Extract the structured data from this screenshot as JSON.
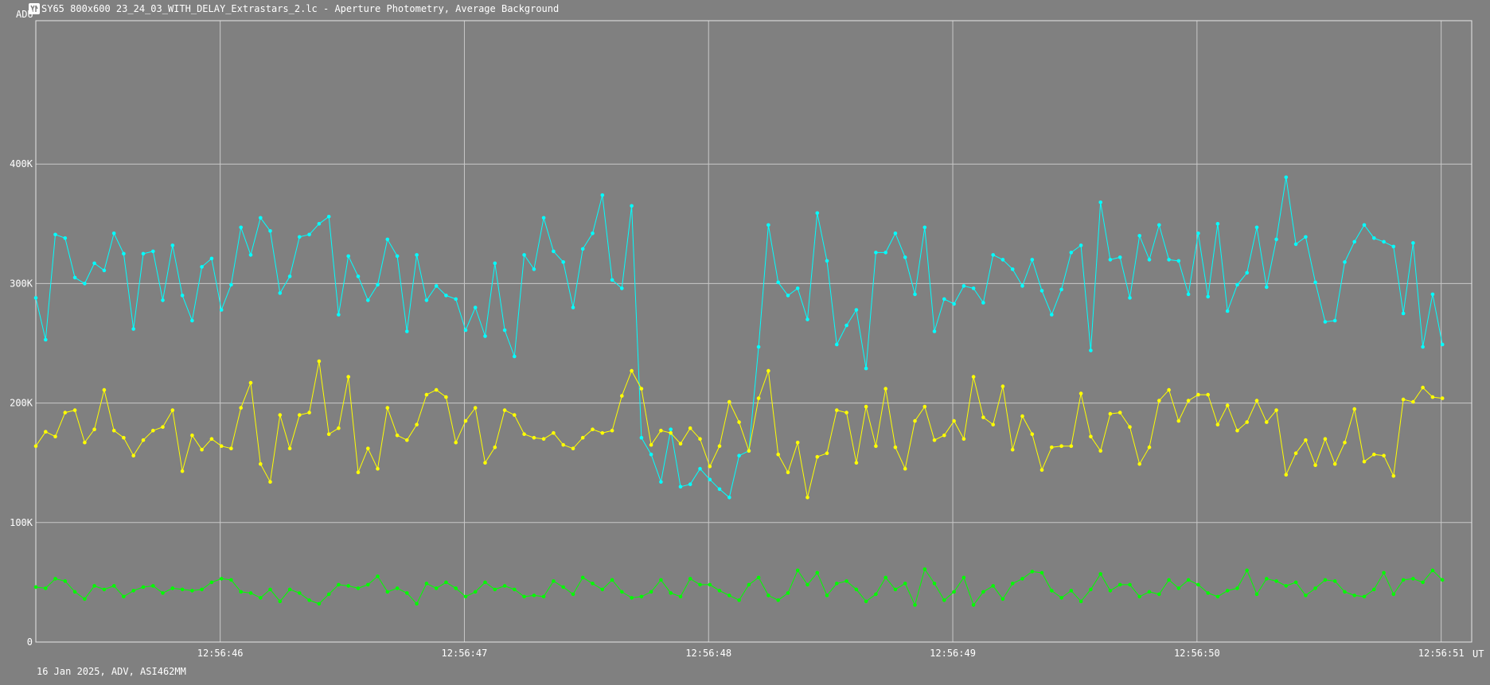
{
  "window": {
    "title": "SY65 800x600 23_24_03_WITH_DELAY_Extrastars_2.lc - Aperture Photometry, Average Background",
    "icon": "app-logo-icon"
  },
  "footer": "16 Jan 2025, ADV, ASI462MM",
  "colors": {
    "background": "#808080",
    "grid": "#c8c8c8",
    "axis": "#e6e6e6",
    "text": "#ffffff",
    "cyan": "#00ffff",
    "yellow": "#ffff00",
    "green": "#00ff00"
  },
  "chart_data": {
    "type": "line",
    "ylabel": "ADU",
    "xunit": "UT",
    "ylim": [
      0,
      520000
    ],
    "y_ticks": [
      {
        "value": 0,
        "label": "0"
      },
      {
        "value": 100000,
        "label": "100K"
      },
      {
        "value": 200000,
        "label": "200K"
      },
      {
        "value": 300000,
        "label": "300K"
      },
      {
        "value": 400000,
        "label": "400K"
      }
    ],
    "xlim": [
      45.245,
      51.125
    ],
    "x_ticks": [
      {
        "value": 46,
        "label": "12:56:46"
      },
      {
        "value": 47,
        "label": "12:56:47"
      },
      {
        "value": 48,
        "label": "12:56:48"
      },
      {
        "value": 49,
        "label": "12:56:49"
      },
      {
        "value": 50,
        "label": "12:56:50"
      },
      {
        "value": 51,
        "label": "12:56:51"
      }
    ],
    "grid": true,
    "x_start": 45.245,
    "x_step": 0.04,
    "series": [
      {
        "color": "#00ffff",
        "values": [
          288000,
          253000,
          341000,
          338000,
          305000,
          300000,
          317000,
          311000,
          342000,
          325000,
          262000,
          325000,
          327000,
          286000,
          332000,
          290000,
          269000,
          314000,
          321000,
          278000,
          299000,
          347000,
          324000,
          355000,
          344000,
          292000,
          306000,
          339000,
          341000,
          350000,
          356000,
          274000,
          323000,
          306000,
          286000,
          299000,
          337000,
          323000,
          260000,
          324000,
          286000,
          298000,
          290000,
          287000,
          261000,
          280000,
          256000,
          317000,
          261000,
          239000,
          324000,
          312000,
          355000,
          327000,
          318000,
          280000,
          329000,
          342000,
          374000,
          303000,
          296000,
          365000,
          171000,
          157000,
          134000,
          178000,
          130000,
          132000,
          145000,
          136000,
          128000,
          121000,
          156000,
          160000,
          247000,
          349000,
          301000,
          290000,
          296000,
          270000,
          359000,
          319000,
          249000,
          265000,
          278000,
          229000,
          326000,
          326000,
          342000,
          322000,
          291000,
          347000,
          260000,
          287000,
          283000,
          298000,
          296000,
          284000,
          324000,
          320000,
          312000,
          298000,
          320000,
          294000,
          274000,
          295000,
          326000,
          332000,
          244000,
          368000,
          320000,
          322000,
          288000,
          340000,
          320000,
          349000,
          320000,
          319000,
          291000,
          342000,
          289000,
          350000,
          277000,
          299000,
          309000,
          347000,
          297000,
          337000,
          389000,
          333000,
          339000,
          301000,
          268000,
          269000,
          318000,
          335000,
          349000,
          338000,
          335000,
          331000,
          275000,
          334000,
          247000,
          291000,
          249000
        ]
      },
      {
        "color": "#ffff00",
        "values": [
          164000,
          176000,
          172000,
          192000,
          194000,
          167000,
          178000,
          211000,
          177000,
          171000,
          156000,
          169000,
          177000,
          180000,
          194000,
          143000,
          173000,
          161000,
          170000,
          164000,
          162000,
          196000,
          217000,
          149000,
          134000,
          190000,
          162000,
          190000,
          192000,
          235000,
          174000,
          179000,
          222000,
          142000,
          162000,
          145000,
          196000,
          173000,
          169000,
          182000,
          207000,
          211000,
          205000,
          167000,
          185000,
          196000,
          150000,
          163000,
          194000,
          190000,
          174000,
          171000,
          170000,
          175000,
          165000,
          162000,
          171000,
          178000,
          175000,
          177000,
          206000,
          227000,
          212000,
          165000,
          177000,
          175000,
          166000,
          179000,
          170000,
          147000,
          164000,
          201000,
          184000,
          160000,
          204000,
          227000,
          157000,
          142000,
          167000,
          121000,
          155000,
          158000,
          194000,
          192000,
          150000,
          197000,
          164000,
          212000,
          163000,
          145000,
          185000,
          197000,
          169000,
          173000,
          185000,
          170000,
          222000,
          188000,
          182000,
          214000,
          161000,
          189000,
          174000,
          144000,
          163000,
          164000,
          164000,
          208000,
          172000,
          160000,
          191000,
          192000,
          180000,
          149000,
          163000,
          202000,
          211000,
          185000,
          202000,
          207000,
          207000,
          182000,
          198000,
          177000,
          184000,
          202000,
          184000,
          194000,
          140000,
          158000,
          169000,
          148000,
          170000,
          149000,
          167000,
          195000,
          151000,
          157000,
          156000,
          139000,
          203000,
          201000,
          213000,
          205000,
          204000
        ]
      },
      {
        "color": "#00ff00",
        "values": [
          46000,
          45000,
          53000,
          51000,
          42000,
          36000,
          47000,
          44000,
          47000,
          38000,
          43000,
          46000,
          47000,
          41000,
          45000,
          44000,
          43000,
          44000,
          50000,
          53000,
          52000,
          42000,
          41000,
          37000,
          44000,
          34000,
          44000,
          41000,
          35000,
          32000,
          40000,
          48000,
          47000,
          45000,
          48000,
          55000,
          42000,
          45000,
          41000,
          32000,
          49000,
          45000,
          50000,
          45000,
          38000,
          42000,
          50000,
          44000,
          47000,
          44000,
          38000,
          39000,
          38000,
          51000,
          46000,
          40000,
          54000,
          49000,
          44000,
          52000,
          42000,
          37000,
          38000,
          42000,
          52000,
          41000,
          38000,
          53000,
          48000,
          48000,
          43000,
          39000,
          35000,
          48000,
          54000,
          39000,
          35000,
          41000,
          60000,
          48000,
          58000,
          39000,
          49000,
          51000,
          44000,
          34000,
          40000,
          54000,
          44000,
          49000,
          31000,
          61000,
          49000,
          35000,
          42000,
          54000,
          31000,
          42000,
          47000,
          36000,
          49000,
          53000,
          59000,
          58000,
          43000,
          37000,
          43000,
          34000,
          44000,
          57000,
          43000,
          48000,
          48000,
          38000,
          42000,
          40000,
          52000,
          45000,
          52000,
          48000,
          41000,
          38000,
          43000,
          45000,
          60000,
          40000,
          53000,
          51000,
          47000,
          50000,
          39000,
          45000,
          52000,
          51000,
          42000,
          39000,
          38000,
          44000,
          58000,
          40000,
          52000,
          53000,
          50000,
          60000,
          52000
        ]
      }
    ]
  }
}
